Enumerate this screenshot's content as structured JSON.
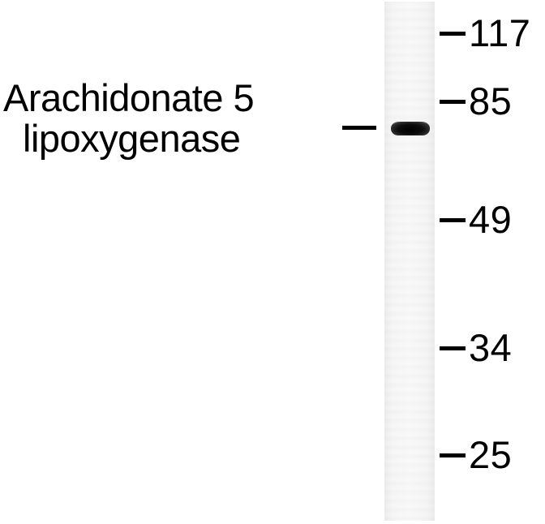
{
  "protein_label": {
    "line1": "Arachidonate 5",
    "line2": "lipoxygenase"
  },
  "markers": [
    {
      "label": "117"
    },
    {
      "label": "85"
    },
    {
      "label": "49"
    },
    {
      "label": "34"
    },
    {
      "label": "25"
    }
  ]
}
